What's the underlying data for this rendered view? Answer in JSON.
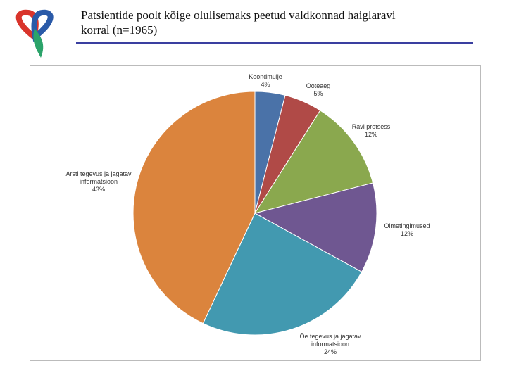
{
  "chart_data": {
    "type": "pie",
    "title": "Patsientide poolt kõige olulisemaks peetud valdkonnad haiglaravi korral (n=1965)",
    "categories": [
      "Koondmulje",
      "Ooteaeg",
      "Ravi protsess",
      "Olmetingimused",
      "Õe tegevus ja jagatav informatsioon",
      "Arsti tegevus ja jagatav informatsioon"
    ],
    "values": [
      4,
      5,
      12,
      12,
      24,
      43
    ],
    "value_labels": [
      "4%",
      "5%",
      "12%",
      "12%",
      "24%",
      "43%"
    ],
    "colors": [
      "#4a72a8",
      "#b04a47",
      "#8aa84e",
      "#6f5791",
      "#4299b0",
      "#db843d"
    ]
  }
}
